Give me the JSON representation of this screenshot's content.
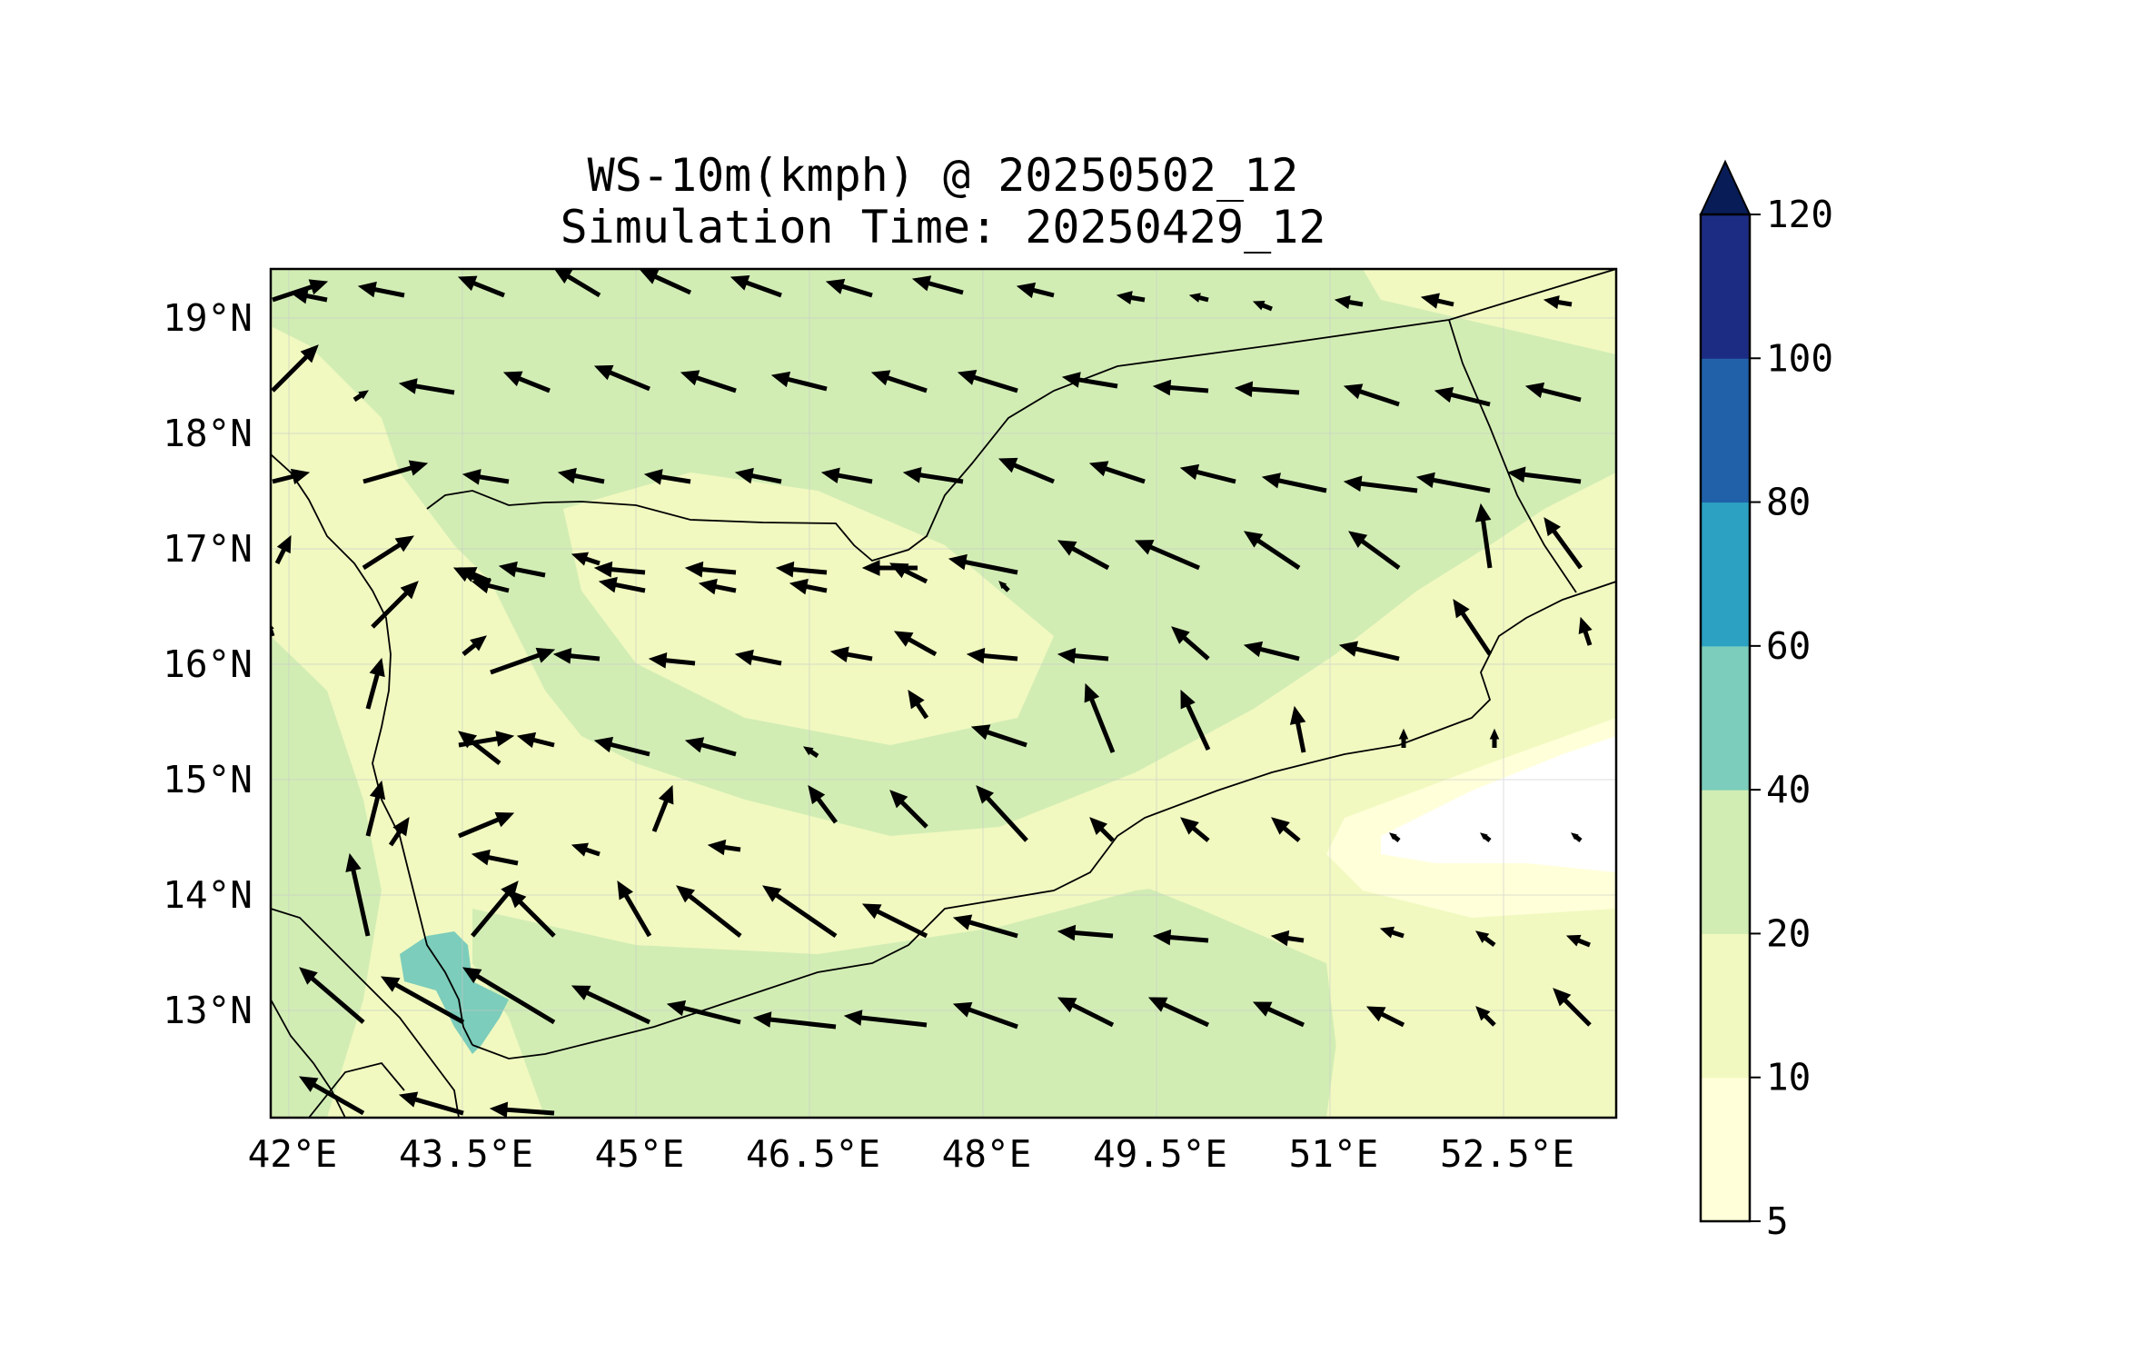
{
  "title": {
    "line1": "WS-10m(kmph) @ 20250502_12",
    "line2": "Simulation Time: 20250429_12"
  },
  "map": {
    "lon_ticks": [
      "42°E",
      "43.5°E",
      "45°E",
      "46.5°E",
      "48°E",
      "49.5°E",
      "51°E",
      "52.5°E"
    ],
    "lat_ticks": [
      "19°N",
      "18°N",
      "17°N",
      "16°N",
      "15°N",
      "14°N",
      "13°N"
    ],
    "lon_range": [
      41.9,
      53.8
    ],
    "lat_range": [
      12.1,
      19.45
    ],
    "gridlines": true,
    "vector_field": "10m wind direction arrows"
  },
  "colorbar": {
    "levels": [
      "5",
      "10",
      "20",
      "40",
      "60",
      "80",
      "100",
      "120"
    ],
    "colors": [
      "#ffffd9",
      "#f1f9c0",
      "#d2edb4",
      "#7ccdbb",
      "#2ca1c2",
      "#2161aa",
      "#1d2c83"
    ],
    "extend_color": "#081d58",
    "extend": "max"
  }
}
